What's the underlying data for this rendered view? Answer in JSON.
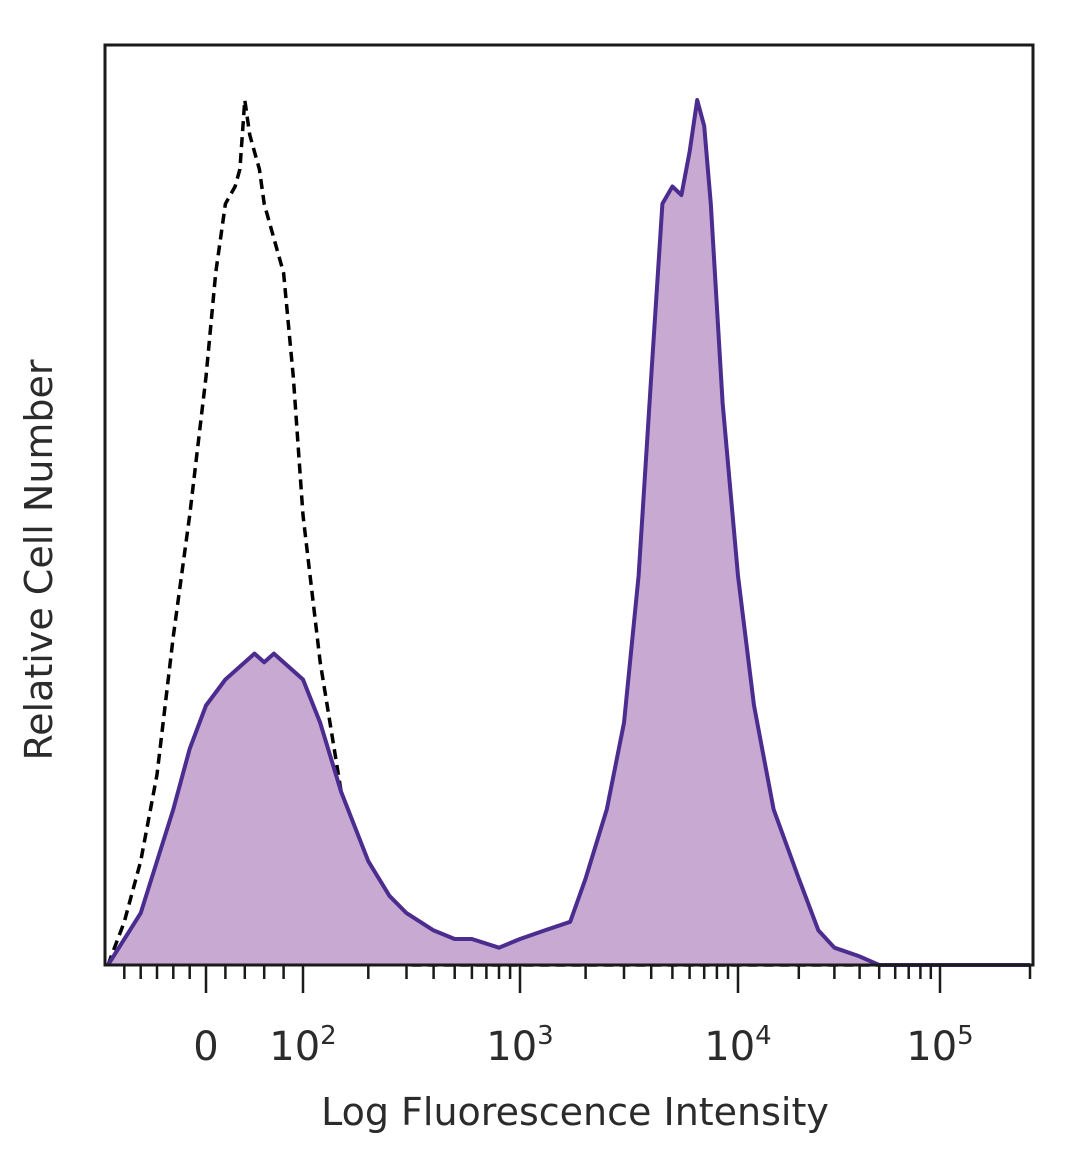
{
  "chart_data": {
    "type": "area",
    "xlabel": "Log Fluorescence Intensity",
    "ylabel": "Relative Cell Number",
    "x_scale": "biexponential (log10)",
    "xlim": [
      -120,
      200000
    ],
    "ylim": [
      0,
      100
    ],
    "y_ticks_shown": false,
    "grid": false,
    "legend": "none",
    "x_ticks": [
      {
        "value": 0,
        "base": "0",
        "exp": ""
      },
      {
        "value": 100,
        "base": "10",
        "exp": "2"
      },
      {
        "value": 1000,
        "base": "10",
        "exp": "3"
      },
      {
        "value": 10000,
        "base": "10",
        "exp": "4"
      },
      {
        "value": 100000,
        "base": "10",
        "exp": "5"
      }
    ],
    "series": [
      {
        "style": "dashed black outline",
        "color": "#000000",
        "fill": "none",
        "x": [
          -120,
          -100,
          -80,
          -60,
          -40,
          -20,
          0,
          10,
          20,
          30,
          35,
          40,
          45,
          50,
          55,
          60,
          70,
          80,
          90,
          100,
          120,
          150,
          180,
          200,
          230,
          260,
          300,
          400,
          1000,
          10000,
          100000,
          200000
        ],
        "y": [
          0,
          5,
          12,
          22,
          38,
          52,
          68,
          80,
          88,
          90,
          92,
          100,
          96,
          94,
          92,
          88,
          84,
          80,
          68,
          52,
          35,
          20,
          10,
          6,
          2,
          1,
          0,
          0,
          0,
          0,
          0,
          0
        ]
      },
      {
        "style": "solid purple outline, lilac fill",
        "color": "#4b2c8f",
        "fill": "#c7a9d2",
        "x": [
          -120,
          -80,
          -60,
          -40,
          -20,
          0,
          20,
          40,
          50,
          60,
          70,
          80,
          100,
          120,
          150,
          200,
          250,
          300,
          400,
          500,
          600,
          800,
          1000,
          1300,
          1700,
          2000,
          2500,
          3000,
          3500,
          4000,
          4500,
          5000,
          5500,
          6000,
          6500,
          7000,
          7500,
          8500,
          10000,
          12000,
          15000,
          20000,
          25000,
          30000,
          40000,
          50000,
          70000,
          100000,
          200000
        ],
        "y": [
          0,
          6,
          12,
          18,
          25,
          30,
          33,
          35,
          36,
          35,
          36,
          35,
          33,
          28,
          20,
          12,
          8,
          6,
          4,
          3,
          3,
          2,
          3,
          4,
          5,
          10,
          18,
          28,
          45,
          68,
          88,
          90,
          89,
          94,
          100,
          97,
          88,
          65,
          45,
          30,
          18,
          10,
          4,
          2,
          1,
          0,
          0,
          0,
          0
        ]
      }
    ]
  }
}
